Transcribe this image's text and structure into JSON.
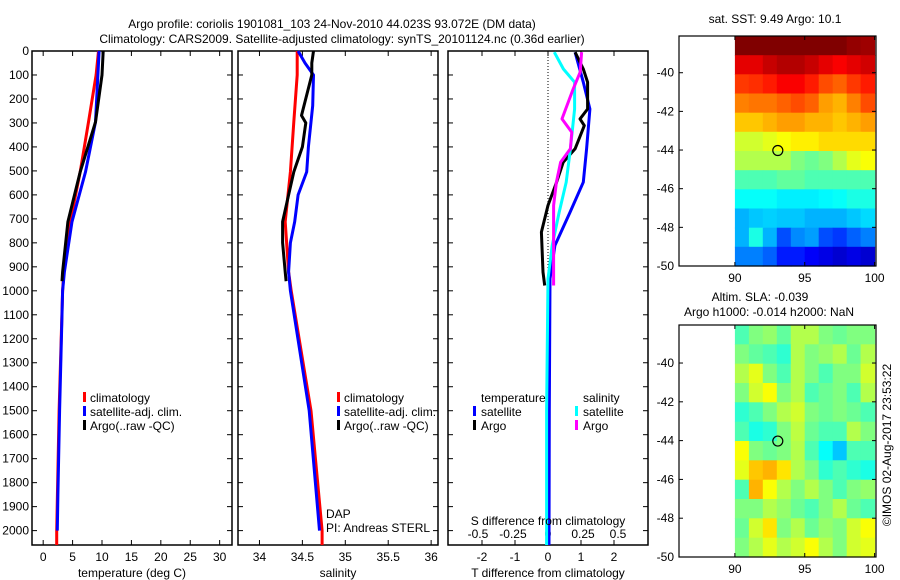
{
  "header": {
    "title_line1": "Argo profile: coriolis 1901081_103 24-Nov-2010 44.023S 93.072E (DM data)",
    "title_line2": "Climatology: CARS2009. Satellite-adjusted climatology: synTS_20101124.nc (0.36d earlier)"
  },
  "credit": "©IMOS 02-Aug-2017 23:53:22",
  "colors": {
    "climatology": "#ff0000",
    "satellite": "#0000ff",
    "argo": "#000000",
    "sal_satellite": "#00ffff",
    "sal_argo": "#ff00ff"
  },
  "chart_data": [
    {
      "type": "line",
      "name": "temperature",
      "xlabel": "temperature (deg C)",
      "xlim": [
        -1.9,
        32.1
      ],
      "ylim": [
        0,
        2060
      ],
      "xticks": [
        0,
        5,
        10,
        15,
        20,
        25,
        30
      ],
      "yticks": [
        0,
        100,
        200,
        300,
        400,
        500,
        600,
        700,
        800,
        900,
        1000,
        1100,
        1200,
        1300,
        1400,
        1500,
        1600,
        1700,
        1800,
        1900,
        2000
      ],
      "legend": [
        "climatology",
        "satellite-adj. clim.",
        "Argo(..raw -QC)"
      ],
      "series": [
        {
          "name": "climatology",
          "color": "#ff0000",
          "depth": [
            0,
            100,
            296,
            504,
            712,
            921,
            1000,
            1500,
            2000,
            2060
          ],
          "values": [
            9.4,
            9.0,
            7.7,
            6.3,
            4.6,
            3.5,
            3.3,
            2.7,
            2.3,
            2.3
          ]
        },
        {
          "name": "satellite-adj. clim.",
          "color": "#0000ff",
          "depth": [
            0,
            100,
            296,
            504,
            712,
            921,
            1000,
            1500,
            1850,
            2000
          ],
          "values": [
            9.5,
            9.3,
            8.9,
            7.2,
            4.9,
            3.6,
            3.3,
            2.8,
            2.5,
            2.4
          ]
        },
        {
          "name": "Argo(..raw -QC)",
          "color": "#000000",
          "depth": [
            0,
            100,
            296,
            504,
            712,
            921,
            960
          ],
          "values": [
            10.2,
            10.0,
            8.9,
            6.3,
            4.2,
            3.3,
            3.2
          ]
        }
      ]
    },
    {
      "type": "line",
      "name": "salinity",
      "xlabel": "salinity",
      "xlim": [
        33.75,
        36.08
      ],
      "ylim": [
        0,
        2060
      ],
      "xticks": [
        34,
        34.5,
        35,
        35.5,
        36
      ],
      "legend": [
        "climatology",
        "satellite-adj. clim.",
        "Argo(..raw -QC)"
      ],
      "annotations": [
        "DAP",
        "PI: Andreas STERL"
      ],
      "series": [
        {
          "name": "climatology",
          "color": "#ff0000",
          "depth": [
            0,
            100,
            296,
            504,
            712,
            921,
            1000,
            1500,
            2000,
            2060
          ],
          "values": [
            34.44,
            34.44,
            34.4,
            34.36,
            34.3,
            34.34,
            34.37,
            34.6,
            34.73,
            34.73
          ]
        },
        {
          "name": "satellite-adj. clim.",
          "color": "#0000ff",
          "depth": [
            0,
            50,
            100,
            228,
            296,
            400,
            504,
            600,
            712,
            800,
            921,
            1000,
            1500,
            2000
          ],
          "values": [
            34.45,
            34.53,
            34.63,
            34.62,
            34.6,
            34.57,
            34.55,
            34.45,
            34.41,
            34.36,
            34.34,
            34.36,
            34.58,
            34.7
          ]
        },
        {
          "name": "Argo(..raw -QC)",
          "color": "#000000",
          "depth": [
            0,
            50,
            100,
            269,
            300,
            400,
            504,
            600,
            712,
            800,
            921,
            960
          ],
          "values": [
            34.63,
            34.61,
            34.61,
            34.49,
            34.54,
            34.5,
            34.4,
            34.34,
            34.27,
            34.27,
            34.3,
            34.31
          ]
        }
      ]
    },
    {
      "type": "line",
      "name": "difference",
      "xlabel": "T difference from climatology",
      "x2label": "S difference from climatology",
      "xlim": [
        -3.03,
        3.03
      ],
      "x2lim": [
        -0.714,
        0.714
      ],
      "ylim": [
        0,
        2060
      ],
      "xticks": [
        -2,
        -1,
        0,
        1,
        2
      ],
      "x2ticks": [
        "-0.5",
        "-0.25",
        "0",
        "0.25",
        "0.5"
      ],
      "legend": {
        "temperature_title": "temperature",
        "salinity_title": "salinity",
        "t_satellite": "satellite",
        "t_argo": "Argo",
        "s_satellite": "satellite",
        "s_argo": "Argo"
      },
      "series": [
        {
          "name": "T satellite",
          "axis": "T",
          "color": "#0000ff",
          "depth": [
            5,
            130,
            242,
            408,
            547,
            672,
            811,
            950,
            1500,
            2060
          ],
          "values": [
            0.82,
            1.07,
            1.27,
            1.17,
            1.07,
            0.67,
            0.21,
            0.06,
            0.04,
            0.03
          ]
        },
        {
          "name": "T Argo",
          "axis": "T",
          "color": "#000000",
          "depth": [
            5,
            75,
            130,
            242,
            283,
            311,
            408,
            464,
            547,
            644,
            755,
            922,
            978
          ],
          "values": [
            0.82,
            1.07,
            1.2,
            1.2,
            0.97,
            1.1,
            0.82,
            0.46,
            0.26,
            0.0,
            -0.2,
            -0.15,
            -0.1
          ]
        },
        {
          "name": "S satellite",
          "axis": "S",
          "color": "#00ffff",
          "depth": [
            5,
            75,
            130,
            242,
            408,
            547,
            672,
            811,
            950,
            1500,
            2060
          ],
          "values": [
            0.045,
            0.11,
            0.19,
            0.19,
            0.16,
            0.13,
            0.08,
            0.03,
            0.0,
            -0.01,
            -0.01
          ]
        },
        {
          "name": "S Argo",
          "axis": "S",
          "color": "#ff00ff",
          "depth": [
            5,
            88,
            158,
            283,
            339,
            408,
            464,
            547,
            644,
            783,
            978
          ],
          "values": [
            0.24,
            0.23,
            0.18,
            0.1,
            0.17,
            0.16,
            0.09,
            0.06,
            0.04,
            0.04,
            0.04
          ]
        }
      ]
    },
    {
      "type": "heatmap",
      "name": "sst-map",
      "title": "sat. SST: 9.49 Argo: 10.1",
      "xlim": [
        86,
        100.1
      ],
      "ylim": [
        -50,
        -38.1
      ],
      "xticks": [
        90,
        95,
        100
      ],
      "yticks": [
        -40,
        -42,
        -44,
        -46,
        -48,
        -50
      ],
      "marker": {
        "lon": 93.072,
        "lat": -44.023
      },
      "grid_lon": [
        90,
        100
      ],
      "grid_lat": [
        -38.1,
        -50
      ],
      "values": [
        [
          1,
          1,
          1,
          1,
          1,
          1,
          1,
          1,
          0.98,
          0.97
        ],
        [
          0.9,
          0.9,
          0.93,
          0.95,
          0.95,
          0.93,
          0.9,
          0.88,
          0.9,
          0.92
        ],
        [
          0.82,
          0.83,
          0.85,
          0.88,
          0.88,
          0.85,
          0.8,
          0.78,
          0.82,
          0.85
        ],
        [
          0.75,
          0.76,
          0.76,
          0.78,
          0.8,
          0.78,
          0.72,
          0.7,
          0.75,
          0.8
        ],
        [
          0.68,
          0.68,
          0.7,
          0.72,
          0.72,
          0.7,
          0.7,
          0.68,
          0.7,
          0.72
        ],
        [
          0.58,
          0.58,
          0.6,
          0.62,
          0.64,
          0.64,
          0.66,
          0.66,
          0.66,
          0.66
        ],
        [
          0.55,
          0.55,
          0.55,
          0.55,
          0.5,
          0.48,
          0.5,
          0.55,
          0.6,
          0.62
        ],
        [
          0.45,
          0.45,
          0.45,
          0.47,
          0.47,
          0.45,
          0.45,
          0.45,
          0.45,
          0.45
        ],
        [
          0.38,
          0.38,
          0.38,
          0.36,
          0.36,
          0.36,
          0.37,
          0.38,
          0.4,
          0.4
        ],
        [
          0.3,
          0.32,
          0.33,
          0.32,
          0.32,
          0.3,
          0.3,
          0.3,
          0.32,
          0.34
        ],
        [
          0.3,
          0.4,
          0.3,
          0.2,
          0.26,
          0.28,
          0.2,
          0.18,
          0.22,
          0.25
        ],
        [
          0.25,
          0.25,
          0.22,
          0.15,
          0.15,
          0.12,
          0.1,
          0.08,
          0.1,
          0.08
        ]
      ]
    },
    {
      "type": "heatmap",
      "name": "sla-map",
      "title": "Altim. SLA: -0.039",
      "subtitle": "Argo h1000: -0.014 h2000: NaN",
      "xlim": [
        86,
        100.1
      ],
      "ylim": [
        -50,
        -38.04
      ],
      "xticks": [
        90,
        95,
        100
      ],
      "yticks": [
        -40,
        -42,
        -44,
        -46,
        -48,
        -50
      ],
      "marker": {
        "lon": 93.072,
        "lat": -44.023
      },
      "grid_lon": [
        90,
        100
      ],
      "grid_lat": [
        -38.04,
        -50
      ],
      "values": [
        [
          0.45,
          0.5,
          0.52,
          0.47,
          0.55,
          0.55,
          0.5,
          0.48,
          0.5,
          0.5
        ],
        [
          0.5,
          0.47,
          0.45,
          0.42,
          0.55,
          0.5,
          0.52,
          0.55,
          0.48,
          0.55
        ],
        [
          0.55,
          0.6,
          0.5,
          0.45,
          0.55,
          0.5,
          0.45,
          0.5,
          0.5,
          0.58
        ],
        [
          0.5,
          0.58,
          0.62,
          0.5,
          0.55,
          0.45,
          0.48,
          0.5,
          0.45,
          0.55
        ],
        [
          0.42,
          0.45,
          0.5,
          0.55,
          0.58,
          0.5,
          0.48,
          0.5,
          0.48,
          0.45
        ],
        [
          0.45,
          0.4,
          0.42,
          0.5,
          0.56,
          0.48,
          0.45,
          0.45,
          0.55,
          0.5
        ],
        [
          0.62,
          0.5,
          0.48,
          0.5,
          0.55,
          0.45,
          0.38,
          0.32,
          0.45,
          0.45
        ],
        [
          0.6,
          0.68,
          0.7,
          0.65,
          0.55,
          0.5,
          0.42,
          0.45,
          0.42,
          0.4
        ],
        [
          0.45,
          0.7,
          0.62,
          0.55,
          0.5,
          0.55,
          0.5,
          0.45,
          0.5,
          0.52
        ],
        [
          0.5,
          0.5,
          0.55,
          0.52,
          0.48,
          0.45,
          0.5,
          0.55,
          0.48,
          0.45
        ],
        [
          0.48,
          0.58,
          0.65,
          0.5,
          0.55,
          0.48,
          0.52,
          0.5,
          0.58,
          0.62
        ],
        [
          0.5,
          0.55,
          0.6,
          0.55,
          0.58,
          0.62,
          0.55,
          0.5,
          0.58,
          0.6
        ]
      ]
    }
  ]
}
